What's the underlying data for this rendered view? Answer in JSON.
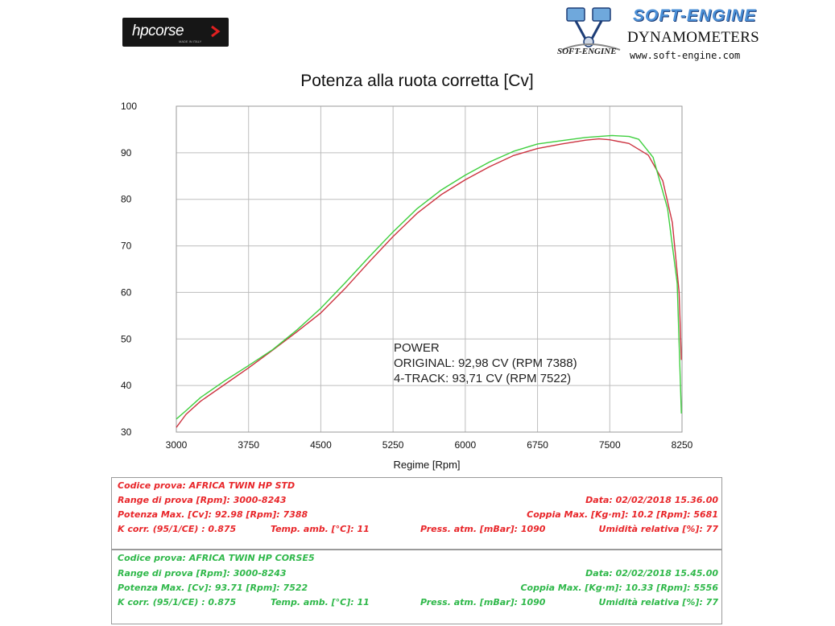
{
  "logos": {
    "hpcorse": {
      "text": "hpcorse",
      "subtext": "MADE IN ITALY"
    },
    "softengine": {
      "brand": "SOFT-ENGINE",
      "product": "DYNAMOMETERS",
      "url": "www.soft-engine.com",
      "small": "SOFT-ENGINE"
    }
  },
  "chart_data": {
    "type": "line",
    "title": "Potenza alla ruota corretta [Cv]",
    "xlabel": "Regime [Rpm]",
    "ylabel": "",
    "xlim": [
      3000,
      8250
    ],
    "ylim": [
      30,
      100
    ],
    "xticks": [
      3000,
      3750,
      4500,
      5250,
      6000,
      6750,
      7500,
      8250
    ],
    "yticks": [
      30,
      40,
      50,
      60,
      70,
      80,
      90,
      100
    ],
    "grid": true,
    "annotation": [
      "POWER",
      "ORIGINAL: 92,98 CV (RPM 7388)",
      "4-TRACK: 93,71 CV (RPM 7522)"
    ],
    "series": [
      {
        "color": "#cc3340",
        "points": [
          [
            3000,
            31
          ],
          [
            3100,
            33.8
          ],
          [
            3250,
            36.6
          ],
          [
            3500,
            40.2
          ],
          [
            3750,
            43.8
          ],
          [
            4000,
            47.6
          ],
          [
            4250,
            51.5
          ],
          [
            4500,
            55.6
          ],
          [
            4750,
            60.8
          ],
          [
            5000,
            66.5
          ],
          [
            5250,
            72.0
          ],
          [
            5500,
            77.0
          ],
          [
            5750,
            81.0
          ],
          [
            6000,
            84.2
          ],
          [
            6250,
            87.0
          ],
          [
            6500,
            89.4
          ],
          [
            6750,
            90.9
          ],
          [
            7000,
            91.9
          ],
          [
            7250,
            92.7
          ],
          [
            7388,
            92.98
          ],
          [
            7500,
            92.8
          ],
          [
            7700,
            92.0
          ],
          [
            7900,
            89.5
          ],
          [
            8050,
            84.0
          ],
          [
            8150,
            75.0
          ],
          [
            8220,
            60.0
          ],
          [
            8243,
            45.5
          ]
        ]
      },
      {
        "color": "#3fcf3f",
        "points": [
          [
            3000,
            32.8
          ],
          [
            3100,
            34.6
          ],
          [
            3250,
            37.4
          ],
          [
            3500,
            41.0
          ],
          [
            3750,
            44.3
          ],
          [
            4000,
            47.7
          ],
          [
            4250,
            51.9
          ],
          [
            4500,
            56.6
          ],
          [
            4750,
            62.0
          ],
          [
            5000,
            67.6
          ],
          [
            5250,
            73.0
          ],
          [
            5500,
            78.0
          ],
          [
            5750,
            82.0
          ],
          [
            6000,
            85.2
          ],
          [
            6250,
            88.0
          ],
          [
            6500,
            90.3
          ],
          [
            6750,
            91.9
          ],
          [
            7000,
            92.6
          ],
          [
            7250,
            93.3
          ],
          [
            7522,
            93.71
          ],
          [
            7700,
            93.5
          ],
          [
            7800,
            92.9
          ],
          [
            7950,
            89.0
          ],
          [
            8100,
            78.0
          ],
          [
            8200,
            62.0
          ],
          [
            8243,
            34.0
          ]
        ]
      }
    ]
  },
  "tests": [
    {
      "color": "#e8262a",
      "codice": "Codice prova: AFRICA TWIN HP STD",
      "range": "Range di prova [Rpm]: 3000-8243",
      "data": "Data: 02/02/2018   15.36.00",
      "potenza": "Potenza Max. [Cv]: 92.98   [Rpm]: 7388",
      "coppia": "Coppia Max. [Kg·m]: 10.2   [Rpm]: 5681",
      "kcorr": "K corr. (95/1/CE) : 0.875",
      "temp": "Temp. amb. [°C]: 11",
      "press": "Press. atm. [mBar]: 1090",
      "umid": "Umidità relativa [%]: 77"
    },
    {
      "color": "#2fb84a",
      "codice": "Codice prova: AFRICA TWIN HP CORSE5",
      "range": "Range di prova [Rpm]: 3000-8243",
      "data": "Data: 02/02/2018   15.45.00",
      "potenza": "Potenza Max. [Cv]: 93.71   [Rpm]: 7522",
      "coppia": "Coppia Max. [Kg·m]: 10.33   [Rpm]: 5556",
      "kcorr": "K corr. (95/1/CE) : 0.875",
      "temp": "Temp. amb. [°C]: 11",
      "press": "Press. atm. [mBar]: 1090",
      "umid": "Umidità relativa [%]: 77"
    }
  ]
}
